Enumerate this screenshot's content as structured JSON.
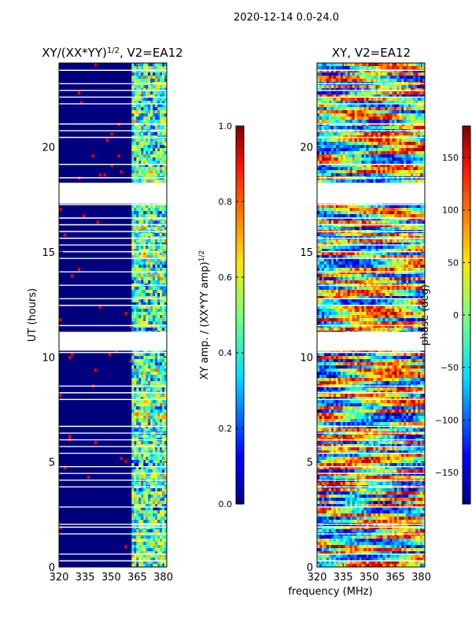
{
  "figure": {
    "suptitle": "2020-12-14 0.0-24.0",
    "xlabel": "frequency (MHz)"
  },
  "chart_data": [
    {
      "type": "heatmap",
      "title": "XY/(XX*YY)^{1/2}, V2=EA12",
      "title_main": "XY/(XX*YY)",
      "title_sup": "1/2",
      "title_rest": ", V2=EA12",
      "ylabel": "UT (hours)",
      "xlim": [
        320,
        382
      ],
      "ylim": [
        0,
        24
      ],
      "xticks": [
        320,
        335,
        350,
        365,
        380
      ],
      "yticks": [
        0,
        5,
        10,
        15,
        20
      ],
      "gaps_hours": [
        [
          17.3,
          18.3
        ],
        [
          10.3,
          11.2
        ]
      ],
      "colorbar": {
        "label": "XY amp. / (XX*YY amp)^{1/2}",
        "label_main": "XY amp. / (XX*YY amp)",
        "label_sup": "1/2",
        "range": [
          0.0,
          1.0
        ],
        "ticks": [
          "0.0",
          "0.2",
          "0.4",
          "0.6",
          "0.8",
          "1.0"
        ],
        "colormap": "jet"
      }
    },
    {
      "type": "heatmap",
      "title": "XY, V2=EA12",
      "ylabel": "",
      "xlim": [
        320,
        382
      ],
      "ylim": [
        0,
        24
      ],
      "xticks": [
        320,
        335,
        350,
        365,
        380
      ],
      "yticks": [
        0,
        5,
        10,
        15,
        20
      ],
      "gaps_hours": [
        [
          17.3,
          18.3
        ],
        [
          10.3,
          11.2
        ]
      ],
      "colorbar": {
        "label": "phase (deg)",
        "range": [
          -180,
          180
        ],
        "ticks": [
          "−150",
          "−100",
          "−50",
          "0",
          "50",
          "100",
          "150"
        ],
        "tick_values": [
          -150,
          -100,
          -50,
          0,
          50,
          100,
          150
        ],
        "colormap": "jet"
      }
    }
  ]
}
